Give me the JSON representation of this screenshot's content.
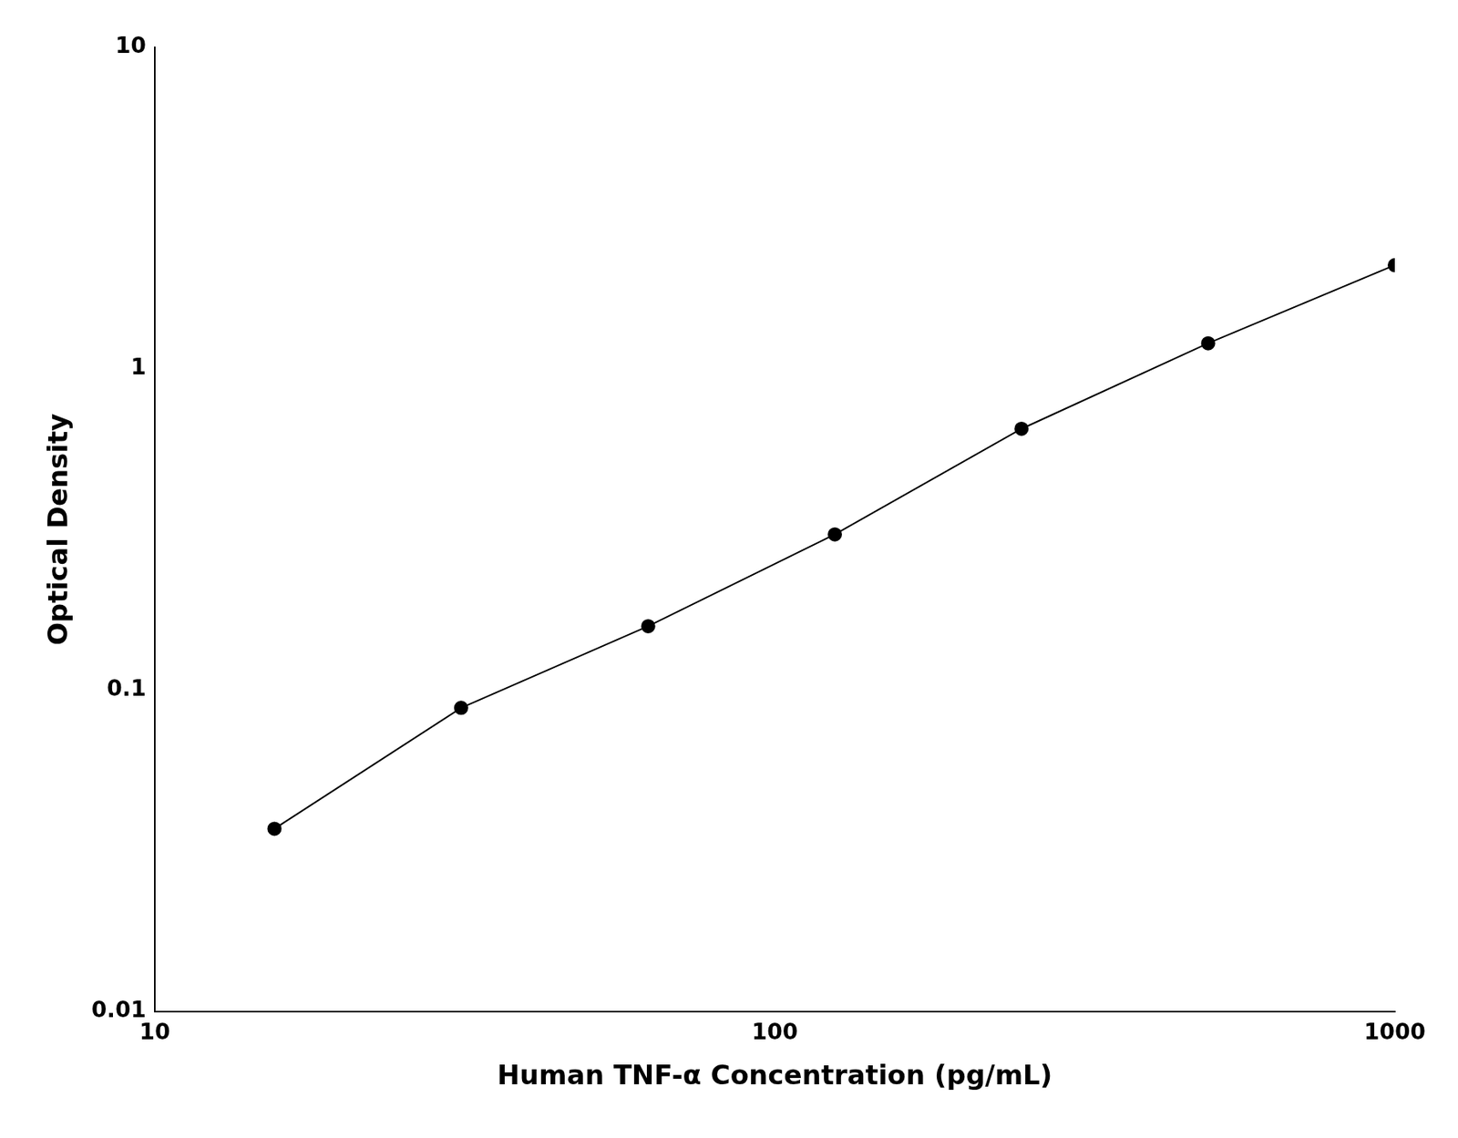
{
  "chart_data": {
    "type": "line",
    "x_label": "Human TNF-α Concentration (pg/mL)",
    "y_label": "Optical Density",
    "x": [
      15.6,
      31.2,
      62.5,
      125,
      250,
      500,
      1000
    ],
    "values": [
      0.037,
      0.088,
      0.158,
      0.305,
      0.65,
      1.2,
      2.1
    ],
    "color": "#000000",
    "marker": "circle",
    "log": true,
    "xlim": [
      10,
      1000
    ],
    "ylim": [
      0.01,
      10
    ],
    "xticks": [
      10,
      100,
      1000
    ],
    "yticks": [
      0.01,
      0.1,
      1,
      10
    ],
    "grid": false
  }
}
